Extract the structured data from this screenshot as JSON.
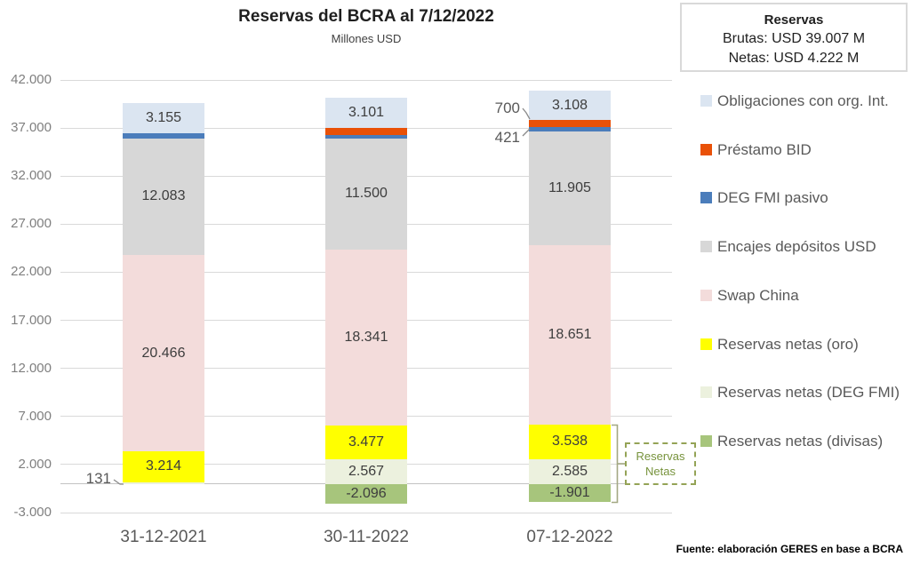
{
  "title": "Reservas del BCRA al 7/12/2022",
  "subtitle": "Millones USD",
  "summary_box": {
    "title": "Reservas",
    "line1": "Brutas: USD 39.007 M",
    "line2": "Netas: USD 4.222 M"
  },
  "source": "Fuente: elaboración GERES en base a BCRA",
  "palette": {
    "obligaciones": "#dbe5f1",
    "prestamo_bid": "#e95108",
    "deg_pasivo": "#4b7dbb",
    "encajes": "#d7d7d7",
    "swap_china": "#f3dcdb",
    "oro": "#ffff00",
    "deg_netas": "#ecf1de",
    "divisas": "#a7c57c"
  },
  "legend": {
    "items": [
      {
        "key": "obligaciones",
        "label": "Obligaciones con org. Int."
      },
      {
        "key": "prestamo_bid",
        "label": "Préstamo BID"
      },
      {
        "key": "deg_pasivo",
        "label": "DEG FMI pasivo"
      },
      {
        "key": "encajes",
        "label": "Encajes depósitos USD"
      },
      {
        "key": "swap_china",
        "label": "Swap China"
      },
      {
        "key": "oro",
        "label": "Reservas netas (oro)"
      },
      {
        "key": "deg_netas",
        "label": "Reservas netas (DEG FMI)"
      },
      {
        "key": "divisas",
        "label": "Reservas netas (divisas)"
      }
    ]
  },
  "annotations": {
    "net_box": {
      "line1": "Reservas",
      "line2": "Netas"
    }
  },
  "chart_data": {
    "type": "bar",
    "stacked": true,
    "title": "Reservas del BCRA al 7/12/2022",
    "ylabel": "Millones USD",
    "ylim": [
      -3000,
      42000
    ],
    "grid": true,
    "legend_position": "right",
    "categories": [
      "31-12-2021",
      "30-11-2022",
      "07-12-2022"
    ],
    "y_axis": {
      "min": -3000,
      "max": 42000,
      "step": 5000,
      "ticks": [
        42000,
        37000,
        32000,
        27000,
        22000,
        17000,
        12000,
        7000,
        2000,
        -3000
      ],
      "tick_labels": [
        "42.000",
        "37.000",
        "32.000",
        "27.000",
        "22.000",
        "17.000",
        "12.000",
        "7.000",
        "2.000",
        "-3.000"
      ]
    },
    "series": [
      {
        "key": "divisas",
        "name": "Reservas netas (divisas)",
        "values": [
          0,
          -2096,
          -1901
        ],
        "labels": [
          null,
          "-2.096",
          "-1.901"
        ]
      },
      {
        "key": "deg_netas",
        "name": "Reservas netas (DEG FMI)",
        "values": [
          131,
          2567,
          2585
        ],
        "labels": [
          null,
          "2.567",
          "2.585"
        ]
      },
      {
        "key": "oro",
        "name": "Reservas netas (oro)",
        "values": [
          3214,
          3477,
          3538
        ],
        "labels": [
          "3.214",
          "3.477",
          "3.538"
        ]
      },
      {
        "key": "swap_china",
        "name": "Swap China",
        "values": [
          20466,
          18341,
          18651
        ],
        "labels": [
          "20.466",
          "18.341",
          "18.651"
        ]
      },
      {
        "key": "encajes",
        "name": "Encajes depósitos USD",
        "values": [
          12083,
          11500,
          11905
        ],
        "labels": [
          "12.083",
          "11.500",
          "11.905"
        ]
      },
      {
        "key": "deg_pasivo",
        "name": "DEG FMI pasivo",
        "values": [
          550,
          421,
          421
        ],
        "labels": [
          null,
          null,
          null
        ]
      },
      {
        "key": "prestamo_bid",
        "name": "Préstamo BID",
        "values": [
          0,
          700,
          700
        ],
        "labels": [
          null,
          null,
          null
        ]
      },
      {
        "key": "obligaciones",
        "name": "Obligaciones con org. Int.",
        "values": [
          3155,
          3101,
          3108
        ],
        "labels": [
          "3.155",
          "3.101",
          "3.108"
        ]
      }
    ],
    "callouts": [
      {
        "text": "131",
        "target": "31-12-2021 · Reservas netas (DEG FMI)"
      },
      {
        "text": "700",
        "target": "07-12-2022 · Préstamo BID"
      },
      {
        "text": "421",
        "target": "07-12-2022 · DEG FMI pasivo"
      }
    ]
  }
}
